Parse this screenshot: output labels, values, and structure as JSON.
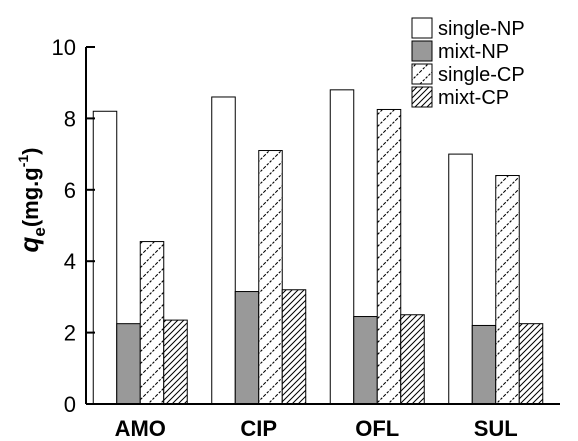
{
  "chart_data": {
    "type": "bar",
    "title": "",
    "xlabel": "",
    "ylabel": {
      "symbol": "q",
      "subscript": "e",
      "unit": "(mg.g",
      "superscript": "-1",
      "unit_close": ")"
    },
    "ylim": [
      0,
      10
    ],
    "yticks": [
      "0",
      "2",
      "4",
      "6",
      "8",
      "10"
    ],
    "grid": false,
    "legend_position": "top-right",
    "categories": [
      "AMO",
      "CIP",
      "OFL",
      "SUL"
    ],
    "series": [
      {
        "name": "single-NP",
        "fill": "white",
        "values": [
          8.2,
          8.6,
          8.8,
          7.0
        ]
      },
      {
        "name": "mixt-NP",
        "fill": "gray",
        "color": "#999999",
        "values": [
          2.25,
          3.15,
          2.45,
          2.2
        ]
      },
      {
        "name": "single-CP",
        "fill": "hatch-sparse",
        "values": [
          4.55,
          7.1,
          8.25,
          6.4
        ]
      },
      {
        "name": "mixt-CP",
        "fill": "hatch-dense",
        "values": [
          2.35,
          3.2,
          2.5,
          2.25
        ]
      }
    ]
  }
}
